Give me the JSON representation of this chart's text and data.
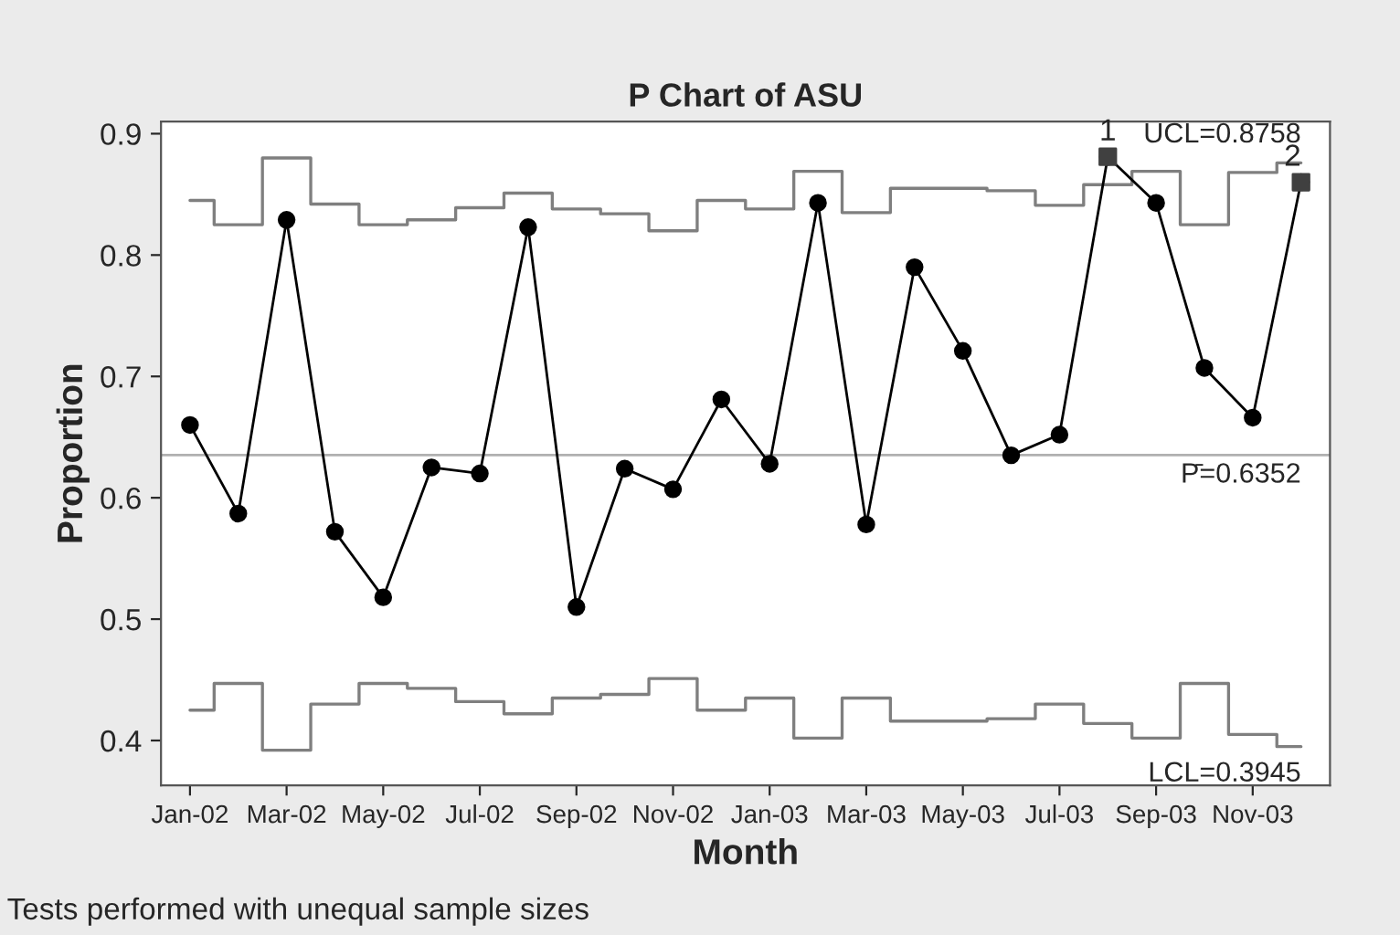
{
  "chart_data": {
    "type": "line",
    "title": "P Chart of ASU",
    "xlabel": "Month",
    "ylabel": "Proportion",
    "categories": [
      "Jan-02",
      null,
      "Mar-02",
      null,
      "May-02",
      null,
      "Jul-02",
      null,
      "Sep-02",
      null,
      "Nov-02",
      null,
      "Jan-03",
      null,
      "Mar-03",
      null,
      "May-03",
      null,
      "Jul-03",
      null,
      "Sep-03",
      null,
      "Nov-03",
      null
    ],
    "series": [
      {
        "color": "#000000",
        "marker": "circle",
        "values": [
          0.66,
          0.587,
          0.829,
          0.572,
          0.518,
          0.625,
          0.62,
          0.823,
          0.51,
          0.624,
          0.607,
          0.681,
          0.628,
          0.843,
          0.578,
          0.79,
          0.721,
          0.635,
          0.652,
          0.881,
          0.843,
          0.707,
          0.666,
          0.86
        ]
      },
      {
        "type": "scatter",
        "color": "#404040",
        "marker": "square",
        "values": [
          null,
          null,
          null,
          null,
          null,
          null,
          null,
          null,
          null,
          null,
          null,
          null,
          null,
          null,
          null,
          null,
          null,
          null,
          null,
          0.881,
          null,
          null,
          null,
          0.86
        ]
      },
      {
        "type": "step",
        "name": "UCL=0.8758",
        "color": "#7f7f7f",
        "values": [
          0.845,
          0.825,
          0.88,
          0.842,
          0.825,
          0.829,
          0.839,
          0.851,
          0.838,
          0.834,
          0.82,
          0.845,
          0.838,
          0.869,
          0.835,
          0.855,
          0.855,
          0.853,
          0.841,
          0.858,
          0.869,
          0.825,
          0.868,
          0.876
        ]
      },
      {
        "type": "step",
        "name": "LCL=0.3945",
        "color": "#7f7f7f",
        "values": [
          0.425,
          0.447,
          0.392,
          0.43,
          0.447,
          0.443,
          0.432,
          0.422,
          0.435,
          0.438,
          0.451,
          0.425,
          0.435,
          0.402,
          0.435,
          0.416,
          0.416,
          0.418,
          0.43,
          0.414,
          0.402,
          0.447,
          0.405,
          0.395
        ]
      }
    ],
    "ref_lines": [
      {
        "axis": "y",
        "value": 0.6352,
        "label": "P̄=0.6352",
        "color": "#b0b0b0"
      }
    ],
    "ylim": [
      0.363,
      0.91
    ],
    "yticks": [
      0.4,
      0.5,
      0.6,
      0.7,
      0.8,
      0.9
    ],
    "grid": false,
    "legend": false,
    "annotations": [
      "Tests performed with unequal sample sizes",
      "1",
      "2"
    ]
  }
}
